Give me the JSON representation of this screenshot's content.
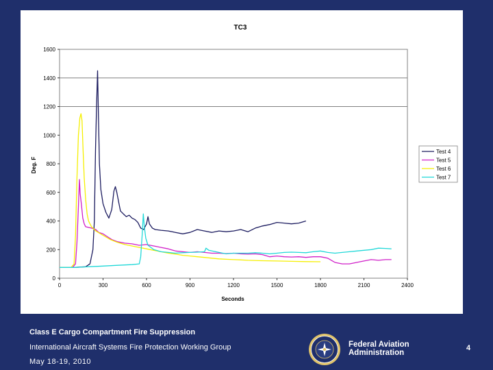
{
  "chart_data": {
    "type": "line",
    "title": "TC3",
    "xlabel": "Seconds",
    "ylabel": "Deg. F",
    "xlim": [
      0,
      2400
    ],
    "ylim": [
      0,
      1600
    ],
    "x_ticks": [
      0,
      300,
      600,
      900,
      1200,
      1500,
      1800,
      2100,
      2400
    ],
    "y_ticks": [
      0,
      200,
      400,
      600,
      800,
      1000,
      1200,
      1400,
      1600
    ],
    "gridlines": [
      1200,
      1400,
      1600
    ],
    "legend_position": "right",
    "series": [
      {
        "name": "Test 4",
        "color": "#1a1a5e",
        "points": [
          [
            0,
            75
          ],
          [
            100,
            75
          ],
          [
            180,
            80
          ],
          [
            210,
            100
          ],
          [
            230,
            200
          ],
          [
            240,
            400
          ],
          [
            248,
            900
          ],
          [
            255,
            1200
          ],
          [
            262,
            1450
          ],
          [
            268,
            1150
          ],
          [
            275,
            800
          ],
          [
            285,
            620
          ],
          [
            300,
            520
          ],
          [
            320,
            460
          ],
          [
            340,
            420
          ],
          [
            360,
            480
          ],
          [
            375,
            610
          ],
          [
            385,
            640
          ],
          [
            395,
            600
          ],
          [
            410,
            520
          ],
          [
            420,
            470
          ],
          [
            440,
            450
          ],
          [
            460,
            430
          ],
          [
            480,
            440
          ],
          [
            500,
            420
          ],
          [
            520,
            410
          ],
          [
            540,
            390
          ],
          [
            560,
            350
          ],
          [
            580,
            340
          ],
          [
            600,
            380
          ],
          [
            610,
            430
          ],
          [
            620,
            380
          ],
          [
            640,
            350
          ],
          [
            660,
            340
          ],
          [
            700,
            335
          ],
          [
            750,
            330
          ],
          [
            800,
            320
          ],
          [
            850,
            310
          ],
          [
            900,
            320
          ],
          [
            950,
            340
          ],
          [
            1000,
            330
          ],
          [
            1050,
            320
          ],
          [
            1100,
            330
          ],
          [
            1150,
            325
          ],
          [
            1200,
            330
          ],
          [
            1250,
            340
          ],
          [
            1300,
            325
          ],
          [
            1350,
            350
          ],
          [
            1400,
            365
          ],
          [
            1450,
            375
          ],
          [
            1500,
            390
          ],
          [
            1550,
            385
          ],
          [
            1600,
            380
          ],
          [
            1650,
            385
          ],
          [
            1700,
            400
          ]
        ]
      },
      {
        "name": "Test 5",
        "color": "#d01ec8",
        "points": [
          [
            0,
            75
          ],
          [
            90,
            75
          ],
          [
            110,
            100
          ],
          [
            120,
            250
          ],
          [
            130,
            500
          ],
          [
            137,
            690
          ],
          [
            142,
            590
          ],
          [
            150,
            520
          ],
          [
            160,
            420
          ],
          [
            170,
            380
          ],
          [
            180,
            360
          ],
          [
            200,
            355
          ],
          [
            220,
            350
          ],
          [
            250,
            340
          ],
          [
            270,
            320
          ],
          [
            300,
            310
          ],
          [
            330,
            290
          ],
          [
            360,
            270
          ],
          [
            400,
            255
          ],
          [
            450,
            245
          ],
          [
            500,
            240
          ],
          [
            550,
            230
          ],
          [
            600,
            235
          ],
          [
            650,
            225
          ],
          [
            700,
            215
          ],
          [
            750,
            205
          ],
          [
            800,
            190
          ],
          [
            850,
            185
          ],
          [
            900,
            180
          ],
          [
            950,
            185
          ],
          [
            1000,
            180
          ],
          [
            1050,
            175
          ],
          [
            1100,
            175
          ],
          [
            1150,
            172
          ],
          [
            1200,
            175
          ],
          [
            1250,
            170
          ],
          [
            1300,
            168
          ],
          [
            1350,
            170
          ],
          [
            1400,
            165
          ],
          [
            1450,
            150
          ],
          [
            1500,
            155
          ],
          [
            1550,
            150
          ],
          [
            1600,
            148
          ],
          [
            1650,
            150
          ],
          [
            1700,
            145
          ],
          [
            1750,
            150
          ],
          [
            1800,
            150
          ],
          [
            1850,
            140
          ],
          [
            1900,
            110
          ],
          [
            1950,
            100
          ],
          [
            2000,
            100
          ],
          [
            2050,
            110
          ],
          [
            2100,
            120
          ],
          [
            2150,
            130
          ],
          [
            2200,
            125
          ],
          [
            2250,
            130
          ],
          [
            2290,
            130
          ]
        ]
      },
      {
        "name": "Test 6",
        "color": "#f5ef00",
        "points": [
          [
            0,
            75
          ],
          [
            80,
            75
          ],
          [
            100,
            100
          ],
          [
            110,
            300
          ],
          [
            120,
            700
          ],
          [
            130,
            1000
          ],
          [
            140,
            1120
          ],
          [
            148,
            1150
          ],
          [
            155,
            1100
          ],
          [
            162,
            900
          ],
          [
            170,
            700
          ],
          [
            180,
            550
          ],
          [
            190,
            450
          ],
          [
            200,
            400
          ],
          [
            220,
            360
          ],
          [
            250,
            330
          ],
          [
            300,
            300
          ],
          [
            350,
            270
          ],
          [
            400,
            250
          ],
          [
            450,
            235
          ],
          [
            500,
            225
          ],
          [
            550,
            215
          ],
          [
            600,
            205
          ],
          [
            650,
            195
          ],
          [
            700,
            185
          ],
          [
            750,
            175
          ],
          [
            800,
            168
          ],
          [
            850,
            160
          ],
          [
            900,
            155
          ],
          [
            950,
            150
          ],
          [
            1000,
            145
          ],
          [
            1050,
            140
          ],
          [
            1100,
            135
          ],
          [
            1150,
            132
          ],
          [
            1200,
            130
          ],
          [
            1250,
            128
          ],
          [
            1300,
            125
          ],
          [
            1400,
            122
          ],
          [
            1500,
            120
          ],
          [
            1600,
            118
          ],
          [
            1700,
            116
          ],
          [
            1800,
            115
          ]
        ]
      },
      {
        "name": "Test 7",
        "color": "#20d8d8",
        "points": [
          [
            0,
            75
          ],
          [
            100,
            75
          ],
          [
            200,
            80
          ],
          [
            300,
            85
          ],
          [
            400,
            90
          ],
          [
            500,
            95
          ],
          [
            550,
            100
          ],
          [
            560,
            150
          ],
          [
            570,
            300
          ],
          [
            578,
            450
          ],
          [
            585,
            360
          ],
          [
            595,
            280
          ],
          [
            610,
            230
          ],
          [
            650,
            200
          ],
          [
            700,
            185
          ],
          [
            750,
            180
          ],
          [
            800,
            175
          ],
          [
            850,
            178
          ],
          [
            900,
            180
          ],
          [
            950,
            182
          ],
          [
            1000,
            185
          ],
          [
            1010,
            210
          ],
          [
            1030,
            195
          ],
          [
            1100,
            180
          ],
          [
            1150,
            170
          ],
          [
            1200,
            175
          ],
          [
            1250,
            175
          ],
          [
            1300,
            175
          ],
          [
            1350,
            178
          ],
          [
            1400,
            175
          ],
          [
            1450,
            170
          ],
          [
            1500,
            175
          ],
          [
            1550,
            180
          ],
          [
            1600,
            182
          ],
          [
            1650,
            180
          ],
          [
            1700,
            178
          ],
          [
            1750,
            185
          ],
          [
            1800,
            190
          ],
          [
            1850,
            180
          ],
          [
            1900,
            175
          ],
          [
            1950,
            180
          ],
          [
            2000,
            185
          ],
          [
            2050,
            190
          ],
          [
            2100,
            195
          ],
          [
            2150,
            200
          ],
          [
            2200,
            210
          ],
          [
            2250,
            208
          ],
          [
            2290,
            205
          ]
        ]
      }
    ]
  },
  "footer": {
    "title": "Class E Cargo Compartment Fire Suppression",
    "group": "International Aircraft Systems Fire Protection Working Group",
    "date": "May 18-19, 2010",
    "agency": "Federal Aviation Administration",
    "page": "4"
  },
  "seal": {
    "name": "faa-seal-icon",
    "ring_color": "#e0c36a",
    "center_color": "#1f2f6b"
  }
}
